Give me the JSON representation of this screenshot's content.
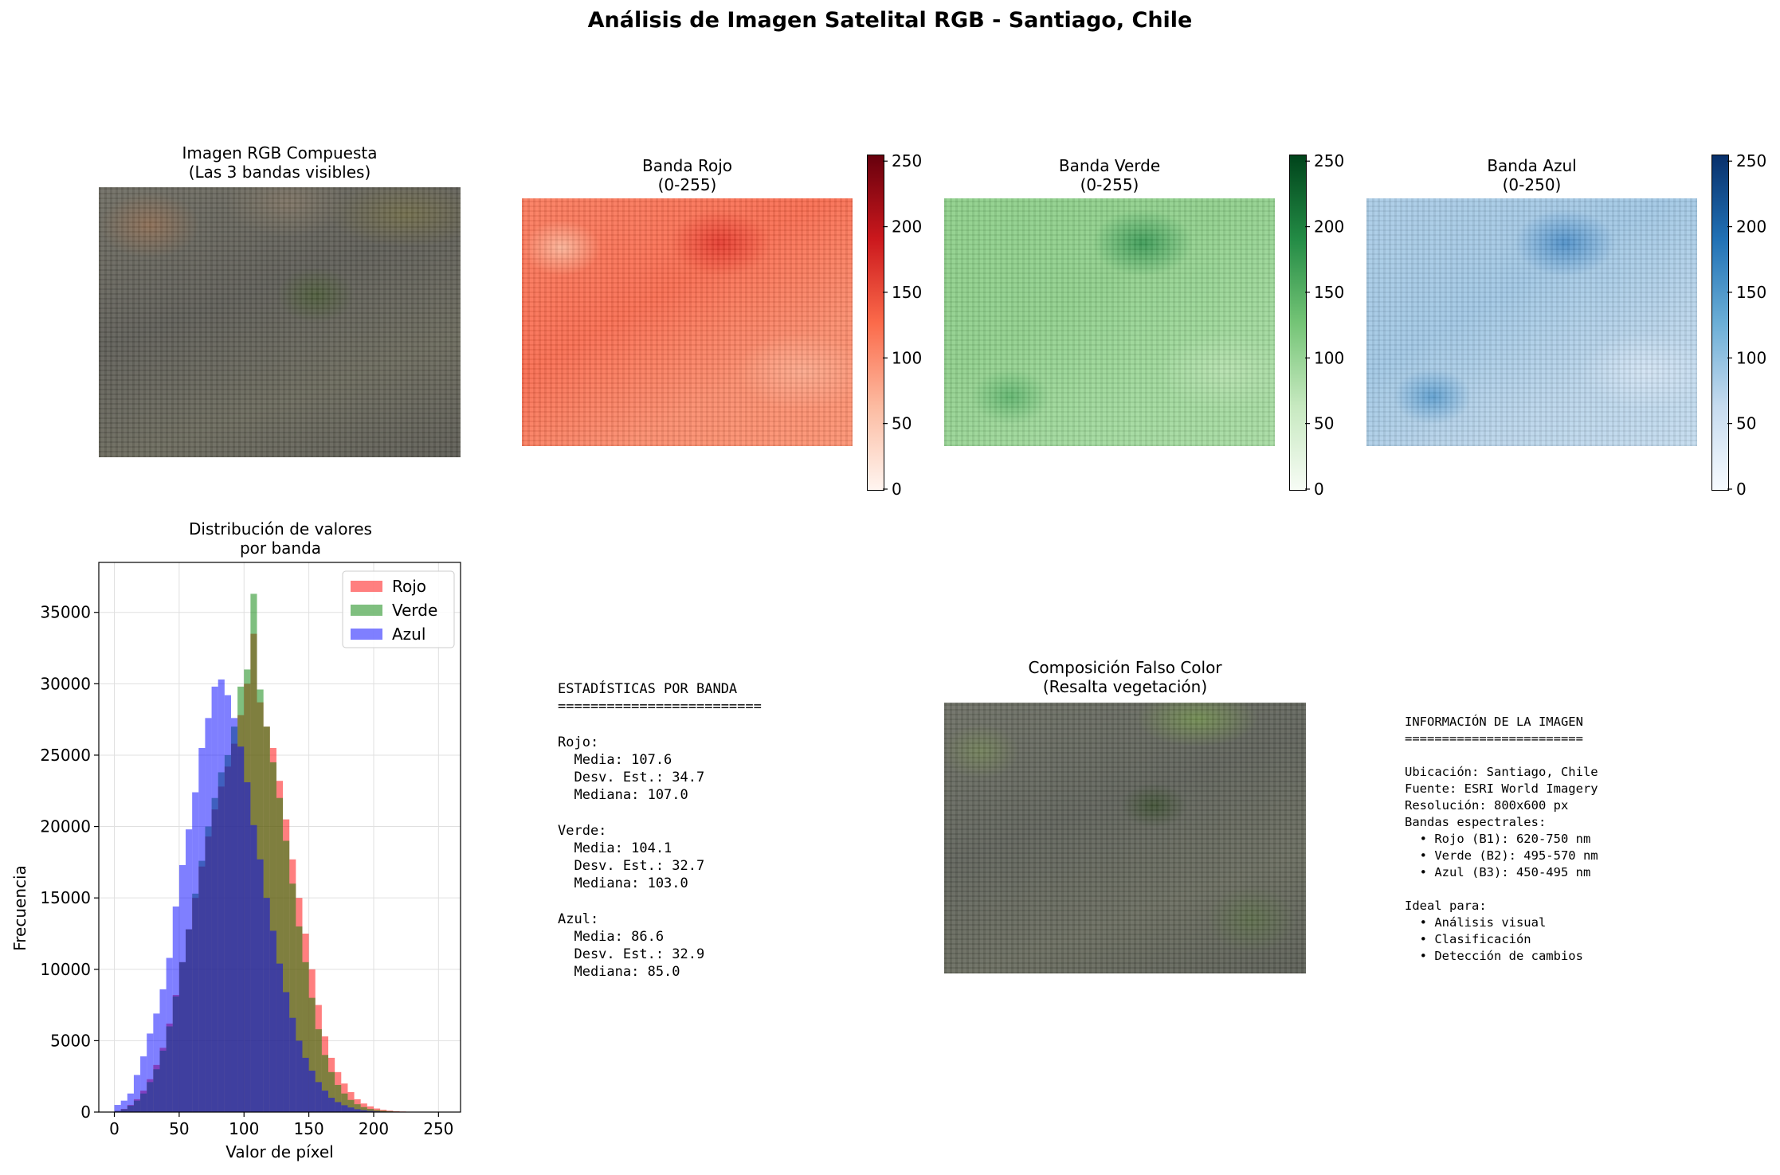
{
  "suptitle": "Análisis de Imagen Satelital RGB - Santiago, Chile",
  "panels": {
    "rgb": {
      "title": "Imagen RGB Compuesta\n(Las 3 bandas visibles)"
    },
    "red": {
      "title": "Banda Rojo\n(0-255)",
      "cbar_ticks": [
        "0",
        "50",
        "100",
        "150",
        "200",
        "250"
      ]
    },
    "green": {
      "title": "Banda Verde\n(0-255)",
      "cbar_ticks": [
        "0",
        "50",
        "100",
        "150",
        "200",
        "250"
      ]
    },
    "blue": {
      "title": "Banda Azul\n(0-250)",
      "cbar_ticks": [
        "0",
        "50",
        "100",
        "150",
        "200",
        "250"
      ]
    },
    "falsecolor": {
      "title": "Composición Falso Color\n(Resalta vegetación)"
    }
  },
  "colors": {
    "red_cmap": [
      "#fff5f0",
      "#fcbba1",
      "#fb6a4a",
      "#cb181d",
      "#67000d"
    ],
    "green_cmap": [
      "#f7fcf5",
      "#c7e9c0",
      "#74c476",
      "#238b45",
      "#00441b"
    ],
    "blue_cmap": [
      "#f7fbff",
      "#c6dbef",
      "#6baed6",
      "#2171b5",
      "#08306b"
    ],
    "hist_red": "#ff0000",
    "hist_green": "#008000",
    "hist_blue": "#0000ff"
  },
  "stats_text": "ESTADÍSTICAS POR BANDA\n=========================\n\nRojo:\n  Media: 107.6\n  Desv. Est.: 34.7\n  Mediana: 107.0\n\nVerde:\n  Media: 104.1\n  Desv. Est.: 32.7\n  Mediana: 103.0\n\nAzul:\n  Media: 86.6\n  Desv. Est.: 32.9\n  Mediana: 85.0",
  "info_text": "INFORMACIÓN DE LA IMAGEN\n========================\n\nUbicación: Santiago, Chile\nFuente: ESRI World Imagery\nResolución: 800x600 px\nBandas espectrales:\n  • Rojo (B1): 620-750 nm\n  • Verde (B2): 495-570 nm\n  • Azul (B3): 450-495 nm\n\nIdeal para:\n  • Análisis visual\n  • Clasificación\n  • Detección de cambios",
  "chart_data": {
    "type": "histogram",
    "title": "Distribución de valores\npor banda",
    "xlabel": "Valor de píxel",
    "ylabel": "Frecuencia",
    "xlim": [
      -12,
      267
    ],
    "ylim": [
      0,
      38500
    ],
    "xticks": [
      0,
      50,
      100,
      150,
      200,
      250
    ],
    "yticks": [
      0,
      5000,
      10000,
      15000,
      20000,
      25000,
      30000,
      35000
    ],
    "grid": true,
    "legend_position": "upper right",
    "bin_width": 5,
    "bin_starts": [
      0,
      5,
      10,
      15,
      20,
      25,
      30,
      35,
      40,
      45,
      50,
      55,
      60,
      65,
      70,
      75,
      80,
      85,
      90,
      95,
      100,
      105,
      110,
      115,
      120,
      125,
      130,
      135,
      140,
      145,
      150,
      155,
      160,
      165,
      170,
      175,
      180,
      185,
      190,
      195,
      200,
      205,
      210,
      215,
      220,
      225,
      230,
      235,
      240,
      245
    ],
    "series": [
      {
        "name": "Rojo",
        "color": "#ff0000",
        "values": [
          80,
          220,
          500,
          900,
          1500,
          2300,
          3300,
          4500,
          6200,
          8200,
          10500,
          12800,
          15000,
          17200,
          19300,
          21200,
          22800,
          24200,
          25800,
          27800,
          30000,
          33500,
          28700,
          27000,
          25500,
          23200,
          20500,
          17700,
          15000,
          12500,
          10000,
          7500,
          5300,
          3800,
          2800,
          2000,
          1400,
          900,
          600,
          400,
          250,
          160,
          100,
          60,
          40,
          25,
          15,
          8,
          5,
          3
        ]
      },
      {
        "name": "Verde",
        "color": "#008000",
        "values": [
          80,
          200,
          450,
          800,
          1300,
          2100,
          3000,
          4300,
          6000,
          8100,
          10500,
          12800,
          15300,
          17600,
          20000,
          22000,
          23800,
          25000,
          27000,
          29800,
          31000,
          36300,
          29600,
          27000,
          24500,
          22000,
          19000,
          16000,
          13000,
          10500,
          8000,
          5800,
          4000,
          2800,
          1900,
          1300,
          850,
          550,
          350,
          220,
          140,
          90,
          55,
          35,
          20,
          12,
          7,
          4,
          2,
          1
        ]
      },
      {
        "name": "Azul",
        "color": "#0000ff",
        "values": [
          500,
          800,
          1300,
          2600,
          3900,
          5500,
          6900,
          8600,
          10800,
          14400,
          17300,
          19800,
          22400,
          25500,
          27600,
          29800,
          30300,
          29200,
          27600,
          25600,
          23100,
          20100,
          17700,
          15000,
          12700,
          10400,
          8400,
          6600,
          5000,
          3800,
          2900,
          2100,
          1500,
          1000,
          700,
          480,
          320,
          200,
          130,
          80,
          50,
          30,
          18,
          10,
          6,
          3,
          2,
          1,
          1,
          0
        ]
      }
    ]
  }
}
